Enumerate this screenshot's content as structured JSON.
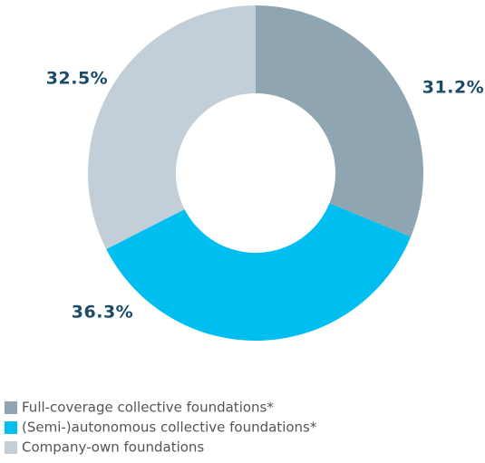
{
  "chart_data": {
    "type": "pie",
    "donut": true,
    "categories": [
      "Full-coverage collective foundations*",
      "(Semi-)autonomous collective foundations*",
      "Company-own foundations"
    ],
    "values": [
      31.2,
      36.3,
      32.5
    ],
    "value_labels": [
      "31.2%",
      "36.3%",
      "32.5%"
    ],
    "colors": [
      "#8fa6b2",
      "#00bff0",
      "#c3cfd8"
    ]
  }
}
